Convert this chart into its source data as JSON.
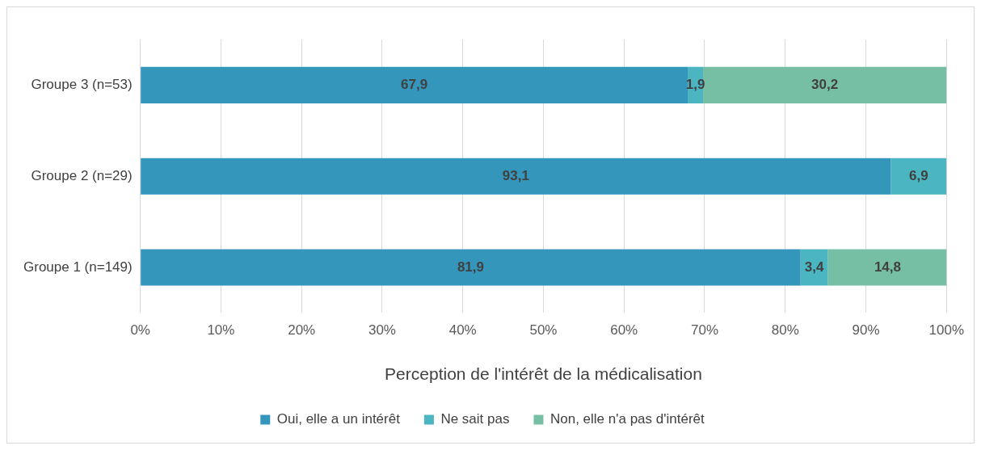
{
  "chart_data": {
    "type": "bar",
    "orientation": "horizontal",
    "stacked": true,
    "xlabel": "Perception de l'intérêt de la médicalisation",
    "categories": [
      "Groupe 3 (n=53)",
      "Groupe 2 (n=29)",
      "Groupe 1 (n=149)"
    ],
    "series": [
      {
        "name": "Oui, elle a un intérêt",
        "color": "#3596bc",
        "values": [
          67.9,
          93.1,
          81.9
        ],
        "value_labels": [
          "67,9",
          "93,1",
          "81,9"
        ]
      },
      {
        "name": "Ne sait pas",
        "color": "#4bb5c1",
        "values": [
          1.9,
          6.9,
          3.4
        ],
        "value_labels": [
          "1,9",
          "6,9",
          "3,4"
        ]
      },
      {
        "name": "Non, elle n'a pas d'intérêt",
        "color": "#76bfa5",
        "values": [
          30.2,
          null,
          14.8
        ],
        "value_labels": [
          "30,2",
          null,
          "14,8"
        ]
      }
    ],
    "xlim": [
      0,
      100
    ],
    "xticks": [
      {
        "value": 0,
        "label": "0%"
      },
      {
        "value": 10,
        "label": "10%"
      },
      {
        "value": 20,
        "label": "20%"
      },
      {
        "value": 30,
        "label": "30%"
      },
      {
        "value": 40,
        "label": "40%"
      },
      {
        "value": 50,
        "label": "50%"
      },
      {
        "value": 60,
        "label": "60%"
      },
      {
        "value": 70,
        "label": "70%"
      },
      {
        "value": 80,
        "label": "80%"
      },
      {
        "value": 90,
        "label": "90%"
      },
      {
        "value": 100,
        "label": "100%"
      }
    ],
    "grid": "x",
    "legend": "bottom"
  }
}
